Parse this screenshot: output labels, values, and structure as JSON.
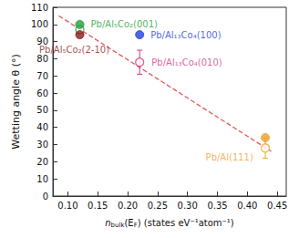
{
  "chart_data": {
    "type": "scatter",
    "xlabel": [
      {
        "text": "n",
        "style": "italic"
      },
      {
        "text": "bulk",
        "style": "sub"
      },
      {
        "text": "(E"
      },
      {
        "text": "F",
        "style": "sub"
      },
      {
        "text": ") (states eV⁻¹atom⁻¹)"
      }
    ],
    "ylabel": "Wetting angle θ (°)",
    "xlim": [
      0.075,
      0.465
    ],
    "xticks": [
      {
        "value": 0.1,
        "label": "0.10"
      },
      0.15,
      {
        "value": 0.2,
        "label": "0.20"
      },
      0.25,
      {
        "value": 0.3,
        "label": "0.30"
      },
      0.35,
      {
        "value": 0.4,
        "label": "0.40"
      },
      0.45
    ],
    "ylim": [
      0,
      110
    ],
    "yticks": [
      0,
      10,
      20,
      30,
      40,
      50,
      60,
      70,
      80,
      90,
      100,
      110
    ],
    "grid": false,
    "series": [
      {
        "label": "Pb/Al₅Co₂(001)",
        "color": "#22a03a",
        "marker": "filled",
        "x": [
          0.12
        ],
        "values": [
          100
        ]
      },
      {
        "color": "#22a03a",
        "marker": "open",
        "x": [
          0.12
        ],
        "values": [
          97
        ]
      },
      {
        "label": "Pb/Al₅Co₂(2-10)",
        "color": "#8b1a1a",
        "marker": "filled",
        "x": [
          0.12
        ],
        "values": [
          94
        ]
      },
      {
        "label": "Pb/Al₁₃Co₄(100)",
        "color": "#2040e0",
        "marker": "filled",
        "x": [
          0.22
        ],
        "values": [
          94
        ]
      },
      {
        "label": "Pb/Al₁₃Co₄(010)",
        "color": "#d03a8a",
        "marker": "open",
        "x": [
          0.22
        ],
        "values": [
          78
        ],
        "error_low": [
          71
        ],
        "error_high": [
          85
        ]
      },
      {
        "color": "#f0a030",
        "marker": "filled",
        "x": [
          0.43
        ],
        "values": [
          34
        ]
      },
      {
        "label": "Pb/Al(111)",
        "color": "#f0a030",
        "marker": "open",
        "x": [
          0.43
        ],
        "values": [
          28
        ],
        "error_low": [
          22
        ],
        "error_high": [
          34
        ]
      },
      {
        "type": "line",
        "line_style": "dashed",
        "color": "#e05a5a",
        "x": [
          0.085,
          0.44
        ],
        "values": [
          105,
          26
        ]
      }
    ]
  }
}
